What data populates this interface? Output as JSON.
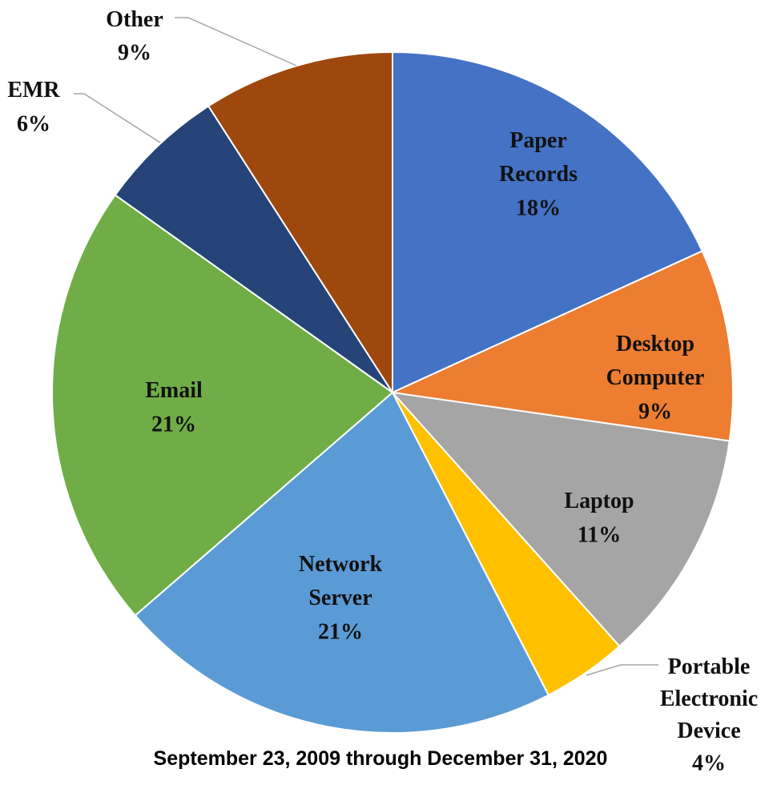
{
  "chart_data": {
    "type": "pie",
    "caption": "September 23, 2009 through December 31, 2020",
    "categories": [
      "Paper Records",
      "Desktop Computer",
      "Laptop",
      "Portable Electronic Device",
      "Network Server",
      "Email",
      "EMR",
      "Other"
    ],
    "values": [
      18,
      9,
      11,
      4,
      21,
      21,
      6,
      9
    ],
    "value_labels": [
      "18%",
      "9%",
      "11%",
      "4%",
      "21%",
      "21%",
      "6%",
      "9%"
    ],
    "colors": [
      "#4472c4",
      "#ed7d31",
      "#a5a5a5",
      "#ffc000",
      "#5b9bd5",
      "#70ad47",
      "#264478",
      "#9e480e"
    ]
  }
}
